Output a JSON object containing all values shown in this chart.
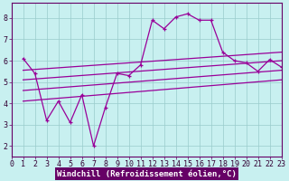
{
  "xlabel": "Windchill (Refroidissement éolien,°C)",
  "bg_color": "#c8f0f0",
  "line_color": "#990099",
  "xlim": [
    0,
    23
  ],
  "ylim": [
    1.5,
    8.7
  ],
  "xticks": [
    0,
    1,
    2,
    3,
    4,
    5,
    6,
    7,
    8,
    9,
    10,
    11,
    12,
    13,
    14,
    15,
    16,
    17,
    18,
    19,
    20,
    21,
    22,
    23
  ],
  "yticks": [
    2,
    3,
    4,
    5,
    6,
    7,
    8
  ],
  "scatter_x": [
    1,
    2,
    3,
    4,
    5,
    6,
    7,
    8,
    9,
    10,
    11,
    12,
    13,
    14,
    15,
    16,
    17,
    18,
    19,
    20,
    21,
    22,
    23
  ],
  "scatter_y": [
    6.1,
    5.4,
    3.2,
    4.1,
    3.1,
    4.4,
    2.0,
    3.8,
    5.4,
    5.3,
    5.8,
    7.9,
    7.5,
    8.05,
    8.2,
    7.9,
    7.9,
    6.4,
    6.0,
    5.9,
    5.5,
    6.05,
    5.7
  ],
  "reg_lines": [
    {
      "x0": 1,
      "y0": 4.1,
      "x1": 23,
      "y1": 5.1
    },
    {
      "x0": 1,
      "y0": 4.6,
      "x1": 23,
      "y1": 5.55
    },
    {
      "x0": 1,
      "y0": 5.1,
      "x1": 23,
      "y1": 6.0
    },
    {
      "x0": 1,
      "y0": 5.55,
      "x1": 23,
      "y1": 6.4
    }
  ],
  "grid_color": "#99cccc",
  "xlabel_fontsize": 6.5,
  "tick_fontsize": 6
}
